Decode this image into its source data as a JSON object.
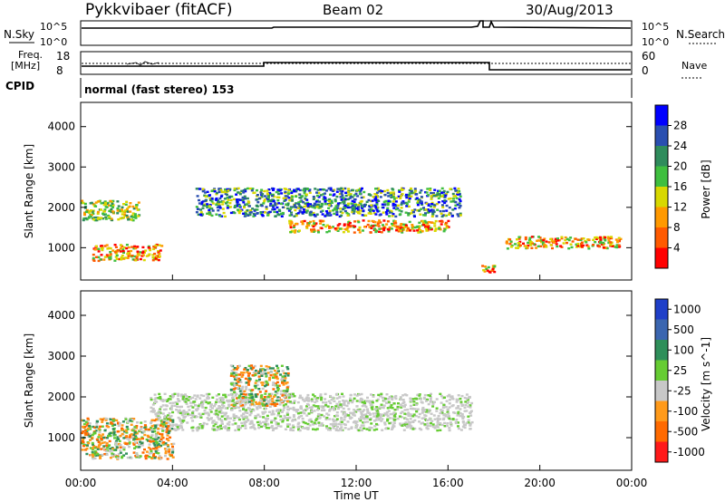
{
  "header": {
    "station": "Pykkvibaer (fitACF)",
    "beam": "Beam 02",
    "date": "30/Aug/2013"
  },
  "top_panels": {
    "nsky_label": "N.Sky",
    "nsky_ticks": [
      "10^5",
      "10^0"
    ],
    "nsearch_label": "N.Search",
    "nsearch_ticks": [
      "10^5",
      "10^0"
    ],
    "freq_label": "Freq.",
    "freq_unit": "[MHz]",
    "freq_ticks": [
      "18",
      "8"
    ],
    "nave_label": "Nave",
    "nave_ticks": [
      "60",
      "0"
    ],
    "cpid_label": "CPID",
    "cpid_text": "normal (fast stereo) 153"
  },
  "chart_data": [
    {
      "type": "heatmap",
      "panel": "power",
      "ylabel": "Slant Range [km]",
      "yticks": [
        1000,
        2000,
        3000,
        4000
      ],
      "ylim": [
        200,
        4600
      ],
      "xlim_hours": [
        0,
        24
      ],
      "colorbar": {
        "label": "Power [dB]",
        "ticks": [
          4,
          8,
          12,
          16,
          20,
          24,
          28
        ],
        "colors": [
          "#0000ff",
          "#2a4fb0",
          "#2f8c5c",
          "#3fbf3f",
          "#d8d800",
          "#ff9900",
          "#ff5a00",
          "#ff0000"
        ]
      },
      "echo_bands": [
        {
          "t": [
            0.5,
            3.5
          ],
          "range_km": [
            700,
            1100
          ],
          "level": "high"
        },
        {
          "t": [
            9.0,
            16.0
          ],
          "range_km": [
            1400,
            1700
          ],
          "level": "high"
        },
        {
          "t": [
            17.3,
            18.0
          ],
          "range_km": [
            400,
            600
          ],
          "level": "high"
        },
        {
          "t": [
            18.5,
            23.5
          ],
          "range_km": [
            1000,
            1300
          ],
          "level": "high"
        },
        {
          "t": [
            5.0,
            16.5
          ],
          "range_km": [
            1800,
            2500
          ],
          "level": "low"
        },
        {
          "t": [
            0.0,
            2.5
          ],
          "range_km": [
            1700,
            2200
          ],
          "level": "mid"
        }
      ]
    },
    {
      "type": "heatmap",
      "panel": "velocity",
      "ylabel": "Slant Range [km]",
      "yticks": [
        1000,
        2000,
        3000,
        4000
      ],
      "ylim": [
        200,
        4600
      ],
      "xlim_hours": [
        0,
        24
      ],
      "colorbar": {
        "label": "Velocity [m s^-1]",
        "ticks": [
          1000,
          500,
          100,
          25,
          -25,
          -100,
          -500,
          -1000
        ],
        "colors": [
          "#1f3fc8",
          "#3b66b0",
          "#2f8f5a",
          "#66cc33",
          "#c8c8c8",
          "#ff9a1a",
          "#ff6a00",
          "#ff1a1a"
        ]
      },
      "echo_bands": [
        {
          "t": [
            3.0,
            17.0
          ],
          "range_km": [
            1200,
            2100
          ],
          "level": "ground"
        },
        {
          "t": [
            0.0,
            4.0
          ],
          "range_km": [
            500,
            1500
          ],
          "level": "negative"
        },
        {
          "t": [
            6.5,
            9.0
          ],
          "range_km": [
            1800,
            2800
          ],
          "level": "negative"
        }
      ]
    }
  ],
  "xaxis": {
    "ticks": [
      "00:00",
      "04:00",
      "08:00",
      "12:00",
      "16:00",
      "20:00",
      "00:00"
    ],
    "label": "Time UT"
  }
}
